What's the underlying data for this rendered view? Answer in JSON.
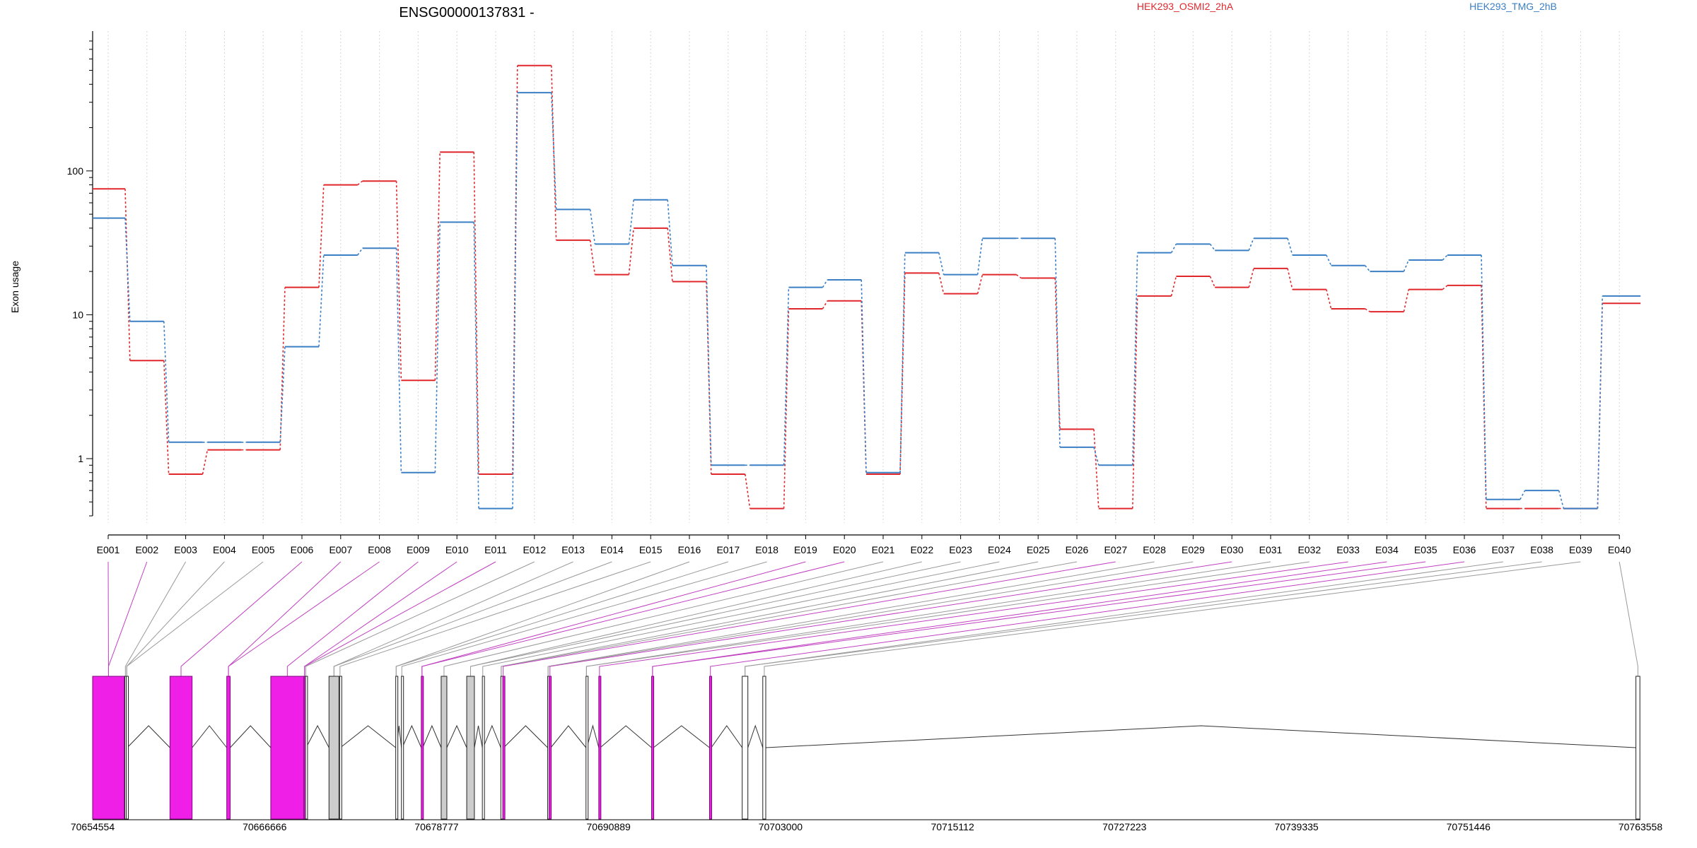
{
  "chart_data": {
    "type": "line",
    "title": "ENSG00000137831 -",
    "ylabel": "Exon usage",
    "y_scale": "log",
    "ylim": [
      0.4,
      800
    ],
    "yticks": [
      "1",
      "10",
      "100"
    ],
    "ytick_values": [
      1,
      10,
      100
    ],
    "grid": "vertical dotted lines at each exon",
    "categories": [
      "E001",
      "E002",
      "E003",
      "E004",
      "E005",
      "E006",
      "E007",
      "E008",
      "E009",
      "E010",
      "E011",
      "E012",
      "E013",
      "E014",
      "E015",
      "E016",
      "E017",
      "E018",
      "E019",
      "E020",
      "E021",
      "E022",
      "E023",
      "E024",
      "E025",
      "E026",
      "E027",
      "E028",
      "E029",
      "E030",
      "E031",
      "E032",
      "E033",
      "E034",
      "E035",
      "E036",
      "E037",
      "E038",
      "E039",
      "E040"
    ],
    "series": [
      {
        "name": "HEK293_OSMI2_2hA",
        "color": "#e0282c",
        "values": [
          75,
          4.8,
          0.78,
          1.15,
          1.15,
          15.5,
          80,
          85,
          3.5,
          135,
          0.78,
          540,
          33,
          19,
          40,
          17,
          0.78,
          0.45,
          11,
          12.5,
          0.78,
          19.5,
          14,
          19,
          18,
          1.6,
          0.45,
          13.5,
          18.5,
          15.5,
          21,
          15,
          11,
          10.5,
          15,
          16,
          0.45,
          0.45,
          0.45,
          12
        ]
      },
      {
        "name": "HEK293_TMG_2hB",
        "color": "#3b7fc4",
        "values": [
          47,
          9,
          1.3,
          1.3,
          1.3,
          6,
          26,
          29,
          0.8,
          44,
          0.45,
          350,
          54,
          31,
          63,
          22,
          0.9,
          0.9,
          15.5,
          17.5,
          0.8,
          27,
          19,
          34,
          34,
          1.2,
          0.9,
          27,
          31,
          28,
          34,
          26,
          22,
          20,
          24,
          26,
          0.52,
          0.6,
          0.45,
          13.5
        ]
      }
    ],
    "gene_model": {
      "genomic_ticks": [
        "70654554",
        "70666666",
        "70678777",
        "70690889",
        "70703000",
        "70715112",
        "70727223",
        "70739335",
        "70751446",
        "70763558"
      ],
      "range": [
        70654554,
        70763558
      ],
      "highlight_color": "#f01fe8",
      "neutral_color": "#cccccc",
      "exons": [
        {
          "id": "E001",
          "start": 70654554,
          "end": 70656790,
          "fill": "magenta"
        },
        {
          "id": "E002",
          "start": 70656820,
          "end": 70656900,
          "fill": "none"
        },
        {
          "id": "E003",
          "start": 70656920,
          "end": 70656990,
          "fill": "none"
        },
        {
          "id": "E004",
          "start": 70660000,
          "end": 70661560,
          "fill": "magenta"
        },
        {
          "id": "E005",
          "start": 70664000,
          "end": 70664240,
          "fill": "magenta"
        },
        {
          "id": "E006",
          "start": 70667100,
          "end": 70669430,
          "fill": "magenta"
        },
        {
          "id": "E007",
          "start": 70669440,
          "end": 70669510,
          "fill": "magenta"
        },
        {
          "id": "E008",
          "start": 70669540,
          "end": 70669590,
          "fill": "none"
        },
        {
          "id": "E009",
          "start": 70671200,
          "end": 70671900,
          "fill": "grey"
        },
        {
          "id": "E010",
          "start": 70671950,
          "end": 70672000,
          "fill": "none"
        },
        {
          "id": "E011",
          "start": 70675900,
          "end": 70675960,
          "fill": "none"
        },
        {
          "id": "E012",
          "start": 70676300,
          "end": 70676360,
          "fill": "none"
        },
        {
          "id": "E013",
          "start": 70677700,
          "end": 70677800,
          "fill": "magenta"
        },
        {
          "id": "E014",
          "start": 70679100,
          "end": 70679500,
          "fill": "grey"
        },
        {
          "id": "E015",
          "start": 70680900,
          "end": 70681440,
          "fill": "grey"
        },
        {
          "id": "E016",
          "start": 70682000,
          "end": 70682060,
          "fill": "none"
        },
        {
          "id": "E017",
          "start": 70683300,
          "end": 70683360,
          "fill": "none"
        },
        {
          "id": "E018",
          "start": 70683440,
          "end": 70683500,
          "fill": "magenta"
        },
        {
          "id": "E019",
          "start": 70686600,
          "end": 70686660,
          "fill": "none"
        },
        {
          "id": "E020",
          "start": 70686700,
          "end": 70686820,
          "fill": "magenta"
        },
        {
          "id": "E021",
          "start": 70689300,
          "end": 70689360,
          "fill": "none"
        },
        {
          "id": "E022",
          "start": 70690200,
          "end": 70690300,
          "fill": "magenta"
        },
        {
          "id": "E023",
          "start": 70693920,
          "end": 70694050,
          "fill": "magenta"
        },
        {
          "id": "E024",
          "start": 70698000,
          "end": 70698120,
          "fill": "magenta"
        },
        {
          "id": "E025",
          "start": 70700300,
          "end": 70700700,
          "fill": "none"
        },
        {
          "id": "E026",
          "start": 70701750,
          "end": 70701960,
          "fill": "none"
        },
        {
          "id": "E027",
          "start": 70763240,
          "end": 70763520,
          "fill": "none"
        }
      ]
    }
  },
  "legend": [
    {
      "label": "HEK293_OSMI2_2hA",
      "color": "#e0282c"
    },
    {
      "label": "HEK293_TMG_2hB",
      "color": "#3b7fc4"
    }
  ]
}
